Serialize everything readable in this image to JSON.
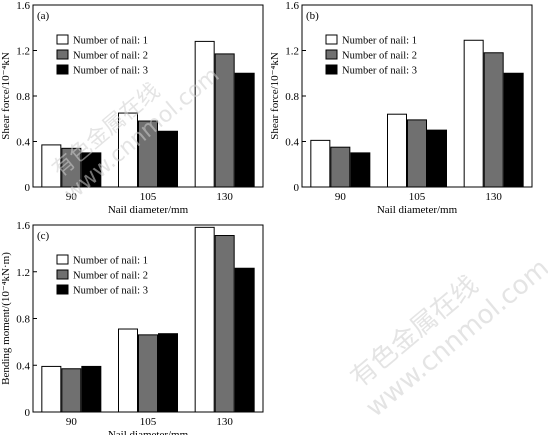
{
  "chart_data": [
    {
      "type": "bar",
      "panel": "(a)",
      "xlabel": "Nail diameter/mm",
      "ylabel": "Shear force/10⁻⁴kN",
      "categories": [
        "90",
        "105",
        "130"
      ],
      "ylim": [
        0,
        1.6
      ],
      "yticks": [
        "0",
        "0.4",
        "0.8",
        "1.2",
        "1.6"
      ],
      "legend_position": "top-left",
      "series": [
        {
          "name": "Number of nail: 1",
          "color": "#ffffff",
          "values": [
            0.37,
            0.65,
            1.28
          ]
        },
        {
          "name": "Number of nail: 2",
          "color": "#707070",
          "values": [
            0.34,
            0.58,
            1.17
          ]
        },
        {
          "name": "Number of nail: 3",
          "color": "#000000",
          "values": [
            0.3,
            0.49,
            1.0
          ]
        }
      ]
    },
    {
      "type": "bar",
      "panel": "(b)",
      "xlabel": "Nail diameter/mm",
      "ylabel": "Shear force/10⁻⁴kN",
      "categories": [
        "90",
        "105",
        "130"
      ],
      "ylim": [
        0,
        1.6
      ],
      "yticks": [
        "0",
        "0.4",
        "0.8",
        "1.2",
        "1.6"
      ],
      "legend_position": "top-left",
      "series": [
        {
          "name": "Number of nail: 1",
          "color": "#ffffff",
          "values": [
            0.41,
            0.64,
            1.29
          ]
        },
        {
          "name": "Number of nail: 2",
          "color": "#707070",
          "values": [
            0.35,
            0.59,
            1.18
          ]
        },
        {
          "name": "Number of nail: 3",
          "color": "#000000",
          "values": [
            0.3,
            0.5,
            1.0
          ]
        }
      ]
    },
    {
      "type": "bar",
      "panel": "(c)",
      "xlabel": "Nail diameter/mm",
      "ylabel": "Bending moment/(10⁻⁴kN·m)",
      "categories": [
        "90",
        "105",
        "130"
      ],
      "ylim": [
        0,
        1.6
      ],
      "yticks": [
        "0",
        "0.4",
        "0.8",
        "1.2",
        "1.6"
      ],
      "legend_position": "top-left",
      "series": [
        {
          "name": "Number of nail: 1",
          "color": "#ffffff",
          "values": [
            0.39,
            0.71,
            1.58
          ]
        },
        {
          "name": "Number of nail: 2",
          "color": "#707070",
          "values": [
            0.37,
            0.66,
            1.51
          ]
        },
        {
          "name": "Number of nail: 3",
          "color": "#000000",
          "values": [
            0.39,
            0.67,
            1.23
          ]
        }
      ]
    }
  ],
  "watermark": {
    "line1": "有色金属在线",
    "line2": "www.cnnmol.com"
  }
}
